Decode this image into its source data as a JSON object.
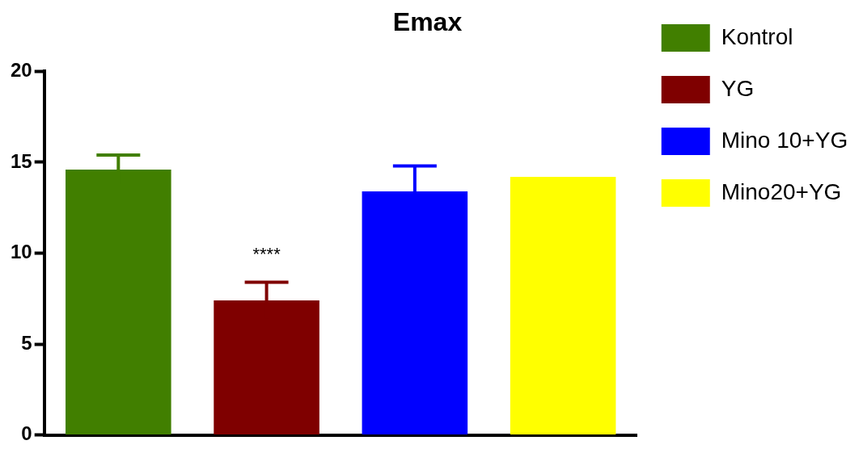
{
  "chart_data": {
    "type": "bar",
    "title": "Emax",
    "categories": [
      null,
      null,
      null,
      null
    ],
    "series": [
      {
        "name": "Kontrol",
        "color": "#417f00",
        "values": [
          14.6,
          null,
          null,
          null
        ],
        "errors": [
          0.8,
          null,
          null,
          null
        ]
      },
      {
        "name": "YG",
        "color": "#7f0000",
        "values": [
          null,
          7.4,
          null,
          null
        ],
        "errors": [
          null,
          1.0,
          null,
          null
        ]
      },
      {
        "name": "Mino 10+YG",
        "color": "#0000ff",
        "values": [
          null,
          null,
          13.4,
          null
        ],
        "errors": [
          null,
          null,
          1.4,
          null
        ]
      },
      {
        "name": "Mino20+YG",
        "color": "#ffff00",
        "values": [
          null,
          null,
          null,
          14.2
        ]
      }
    ],
    "ylim": [
      0,
      20
    ],
    "yticks": [
      0,
      5,
      10,
      15,
      20
    ],
    "grid": false,
    "legend": "right",
    "tick_labels": "y",
    "annotations": [
      "****"
    ]
  }
}
